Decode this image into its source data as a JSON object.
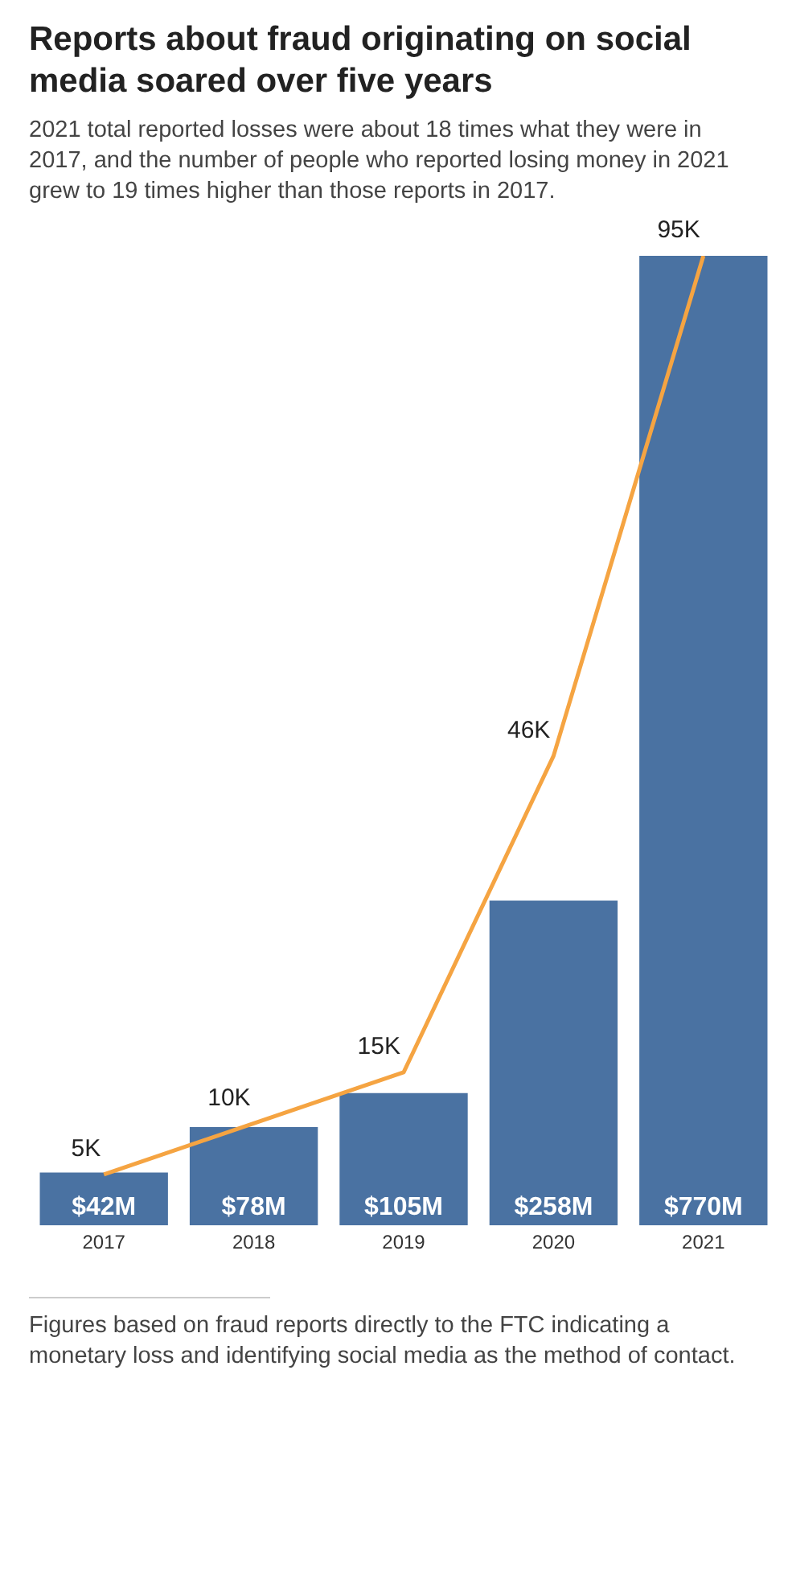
{
  "chart_data": {
    "type": "bar",
    "title": "Reports about fraud originating on social media soared over five years",
    "subtitle": "2021 total reported losses were about 18 times what they were in 2017, and the number of people who reported losing money in 2021 grew to 19 times higher than those reports in 2017.",
    "categories": [
      "2017",
      "2018",
      "2019",
      "2020",
      "2021"
    ],
    "series": [
      {
        "color": "#4a72a2",
        "values": [
          42,
          78,
          105,
          258,
          770
        ],
        "value_labels": [
          "$42M",
          "$78M",
          "$105M",
          "$258M",
          "$770M"
        ]
      },
      {
        "type": "line",
        "axis": "y2",
        "color": "#f5a442",
        "values": [
          5,
          10,
          15,
          46,
          95
        ],
        "value_labels": [
          "5K",
          "10K",
          "15K",
          "46K",
          "95K"
        ]
      }
    ],
    "ylim": [
      0,
      770
    ],
    "y2lim": [
      0,
      95
    ],
    "tick_labels": "x",
    "grid": false,
    "legend": false,
    "marker": "none",
    "line_style": "solid",
    "annotations": [
      "Figures based on fraud reports directly to the FTC indicating a monetary loss and identifying social media as the method of contact."
    ]
  }
}
